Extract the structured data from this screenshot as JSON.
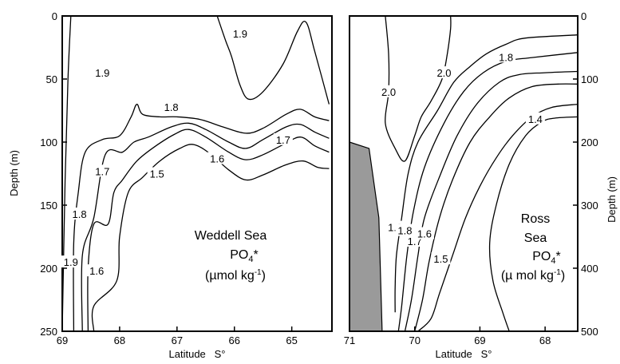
{
  "chart_data": [
    {
      "type": "contour",
      "xlabel": "Latitude   S°",
      "ylabel": "Depth (m)",
      "xlim": [
        69,
        64.3
      ],
      "ylim": [
        0,
        250
      ],
      "x_ticks": [
        "69",
        "68",
        "67",
        "66",
        "65"
      ],
      "y_ticks": [
        "0",
        "50",
        "100",
        "150",
        "200",
        "250"
      ],
      "annotation": [
        "Weddell Sea",
        "PO4*",
        "(µmol kg-1)"
      ],
      "contour_labels": [
        {
          "text": "1.9",
          "x": 68.85,
          "y": 195
        },
        {
          "text": "1.8",
          "x": 68.7,
          "y": 157
        },
        {
          "text": "1.7",
          "x": 68.3,
          "y": 123
        },
        {
          "text": "1.6",
          "x": 68.4,
          "y": 202
        },
        {
          "text": "1.9",
          "x": 68.3,
          "y": 45
        },
        {
          "text": "1.9",
          "x": 65.9,
          "y": 14
        },
        {
          "text": "1.8",
          "x": 67.1,
          "y": 72
        },
        {
          "text": "1.7",
          "x": 65.15,
          "y": 98
        },
        {
          "text": "1.6",
          "x": 66.3,
          "y": 113
        },
        {
          "text": "1.5",
          "x": 67.35,
          "y": 125
        }
      ],
      "contours": [
        {
          "level": 1.9,
          "points": [
            [
              68.85,
              0
            ],
            [
              68.9,
              50
            ],
            [
              68.95,
              130
            ],
            [
              69.0,
              250
            ]
          ]
        },
        {
          "level": 1.9,
          "points": [
            [
              66.3,
              0
            ],
            [
              66.15,
              20
            ],
            [
              66.05,
              32
            ],
            [
              65.9,
              55
            ],
            [
              65.75,
              66
            ],
            [
              65.5,
              60
            ],
            [
              65.15,
              38
            ],
            [
              64.9,
              12
            ],
            [
              64.75,
              5
            ],
            [
              64.6,
              28
            ],
            [
              64.35,
              70
            ]
          ]
        },
        {
          "level": 1.8,
          "points": [
            [
              68.8,
              250
            ],
            [
              68.8,
              180
            ],
            [
              68.72,
              140
            ],
            [
              68.6,
              108
            ],
            [
              68.3,
              98
            ],
            [
              68.0,
              95
            ],
            [
              67.8,
              80
            ],
            [
              67.7,
              70
            ],
            [
              67.6,
              78
            ],
            [
              67.3,
              80
            ],
            [
              67.0,
              80
            ],
            [
              66.6,
              82
            ],
            [
              66.2,
              88
            ],
            [
              65.8,
              93
            ],
            [
              65.5,
              89
            ],
            [
              65.1,
              78
            ],
            [
              64.85,
              74
            ],
            [
              64.6,
              80
            ],
            [
              64.35,
              83
            ]
          ]
        },
        {
          "level": 1.7,
          "points": [
            [
              68.65,
              250
            ],
            [
              68.65,
              190
            ],
            [
              68.45,
              160
            ],
            [
              68.25,
              110
            ],
            [
              67.95,
              108
            ],
            [
              67.75,
              100
            ],
            [
              67.5,
              96
            ],
            [
              67.1,
              88
            ],
            [
              66.8,
              85
            ],
            [
              66.5,
              90
            ],
            [
              66.1,
              100
            ],
            [
              65.8,
              105
            ],
            [
              65.5,
              98
            ],
            [
              65.1,
              88
            ],
            [
              64.85,
              86
            ],
            [
              64.6,
              92
            ],
            [
              64.35,
              97
            ]
          ]
        },
        {
          "level": 1.6,
          "points": [
            [
              68.55,
              250
            ],
            [
              68.55,
              200
            ],
            [
              68.45,
              165
            ],
            [
              68.2,
              165
            ],
            [
              68.1,
              140
            ],
            [
              67.95,
              130
            ],
            [
              67.7,
              115
            ],
            [
              67.4,
              104
            ],
            [
              67.05,
              94
            ],
            [
              66.8,
              90
            ],
            [
              66.5,
              96
            ],
            [
              66.1,
              108
            ],
            [
              65.8,
              114
            ],
            [
              65.5,
              110
            ],
            [
              65.15,
              102
            ],
            [
              64.85,
              96
            ],
            [
              64.6,
              103
            ],
            [
              64.35,
              108
            ]
          ]
        },
        {
          "level": 1.5,
          "points": [
            [
              68.45,
              250
            ],
            [
              68.45,
              230
            ],
            [
              68.05,
              210
            ],
            [
              68.0,
              175
            ],
            [
              67.85,
              140
            ],
            [
              67.6,
              128
            ],
            [
              67.3,
              115
            ],
            [
              66.95,
              105
            ],
            [
              66.7,
              102
            ],
            [
              66.4,
              110
            ],
            [
              66.1,
              122
            ],
            [
              65.8,
              130
            ],
            [
              65.5,
              126
            ],
            [
              65.1,
              118
            ],
            [
              64.8,
              115
            ],
            [
              64.55,
              120
            ],
            [
              64.35,
              121
            ]
          ]
        }
      ]
    },
    {
      "type": "contour",
      "xlabel": "Latitude   S°",
      "ylabel": "Depth (m)",
      "xlim": [
        71,
        67.5
      ],
      "ylim": [
        0,
        500
      ],
      "x_ticks": [
        "71",
        "70",
        "69",
        "68"
      ],
      "y_ticks": [
        "0",
        "100",
        "200",
        "300",
        "400",
        "500"
      ],
      "annotation": [
        "Ross",
        "Sea",
        "PO4*",
        "(µ mol kg-1)"
      ],
      "landmass": [
        [
          71.0,
          200
        ],
        [
          70.7,
          210
        ],
        [
          70.55,
          320
        ],
        [
          70.5,
          500
        ],
        [
          71.0,
          500
        ]
      ],
      "contour_labels": [
        {
          "text": "2.0",
          "x": 70.4,
          "y": 120
        },
        {
          "text": "2.0",
          "x": 69.55,
          "y": 90
        },
        {
          "text": "1.8",
          "x": 68.6,
          "y": 65
        },
        {
          "text": "1.4",
          "x": 68.15,
          "y": 163
        },
        {
          "text": "1.9",
          "x": 70.3,
          "y": 335
        },
        {
          "text": "1.8",
          "x": 70.15,
          "y": 340
        },
        {
          "text": "1.7",
          "x": 70.0,
          "y": 357
        },
        {
          "text": "1.6",
          "x": 69.85,
          "y": 345
        },
        {
          "text": "1.5",
          "x": 69.6,
          "y": 385
        }
      ],
      "contours": [
        {
          "level": 2.0,
          "points": [
            [
              70.45,
              0
            ],
            [
              70.4,
              60
            ],
            [
              70.4,
              120
            ],
            [
              70.45,
              170
            ],
            [
              70.3,
              210
            ],
            [
              70.15,
              230
            ],
            [
              70.0,
              190
            ],
            [
              69.9,
              160
            ],
            [
              69.75,
              135
            ],
            [
              69.58,
              100
            ],
            [
              69.5,
              60
            ],
            [
              69.45,
              20
            ],
            [
              69.45,
              0
            ]
          ]
        },
        {
          "level": 1.9,
          "points": [
            [
              70.3,
              470
            ],
            [
              70.3,
              430
            ],
            [
              70.28,
              380
            ],
            [
              70.2,
              320
            ],
            [
              70.1,
              250
            ],
            [
              69.95,
              200
            ],
            [
              69.65,
              150
            ],
            [
              69.4,
              105
            ],
            [
              69.15,
              80
            ],
            [
              68.9,
              60
            ],
            [
              68.6,
              45
            ],
            [
              68.3,
              35
            ],
            [
              67.5,
              30
            ]
          ]
        },
        {
          "level": 1.8,
          "points": [
            [
              70.25,
              500
            ],
            [
              70.2,
              460
            ],
            [
              70.12,
              380
            ],
            [
              70.02,
              310
            ],
            [
              69.85,
              240
            ],
            [
              69.55,
              170
            ],
            [
              69.25,
              120
            ],
            [
              68.95,
              90
            ],
            [
              68.6,
              72
            ],
            [
              68.2,
              66
            ],
            [
              67.5,
              58
            ]
          ]
        },
        {
          "level": 1.7,
          "points": [
            [
              70.15,
              500
            ],
            [
              70.05,
              450
            ],
            [
              69.95,
              380
            ],
            [
              69.85,
              320
            ],
            [
              69.6,
              250
            ],
            [
              69.35,
              190
            ],
            [
              69.05,
              140
            ],
            [
              68.7,
              105
            ],
            [
              68.4,
              93
            ],
            [
              68.0,
              90
            ],
            [
              67.5,
              88
            ]
          ]
        },
        {
          "level": 1.6,
          "points": [
            [
              70.0,
              500
            ],
            [
              69.88,
              450
            ],
            [
              69.78,
              390
            ],
            [
              69.62,
              320
            ],
            [
              69.42,
              260
            ],
            [
              69.15,
              200
            ],
            [
              68.85,
              160
            ],
            [
              68.55,
              130
            ],
            [
              68.2,
              112
            ],
            [
              67.8,
              108
            ],
            [
              67.5,
              108
            ]
          ]
        },
        {
          "level": 1.5,
          "points": [
            [
              69.95,
              500
            ],
            [
              69.75,
              480
            ],
            [
              69.62,
              440
            ],
            [
              69.42,
              380
            ],
            [
              69.22,
              320
            ],
            [
              69.0,
              270
            ],
            [
              68.75,
              225
            ],
            [
              68.5,
              190
            ],
            [
              68.2,
              160
            ],
            [
              67.9,
              145
            ],
            [
              67.5,
              140
            ]
          ]
        },
        {
          "level": 1.4,
          "points": [
            [
              68.55,
              500
            ],
            [
              68.65,
              470
            ],
            [
              68.8,
              420
            ],
            [
              68.85,
              360
            ],
            [
              68.75,
              300
            ],
            [
              68.55,
              235
            ],
            [
              68.3,
              190
            ],
            [
              68.05,
              168
            ],
            [
              67.85,
              162
            ],
            [
              67.5,
              160
            ]
          ]
        }
      ]
    }
  ]
}
